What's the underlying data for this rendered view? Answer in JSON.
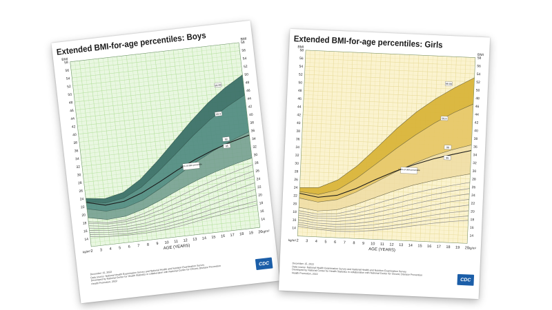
{
  "chart_data": [
    {
      "type": "area",
      "title": "Extended BMI-for-age percentiles: Boys",
      "xlabel": "AGE (YEARS)",
      "ylabel": "BMI",
      "unit_label": "kg/m²",
      "xlim": [
        2,
        20
      ],
      "ylim": [
        12,
        58
      ],
      "x_ticks": [
        2,
        3,
        4,
        5,
        6,
        7,
        8,
        9,
        10,
        11,
        12,
        13,
        14,
        15,
        16,
        17,
        18,
        19,
        20
      ],
      "y_ticks": [
        14,
        16,
        18,
        20,
        22,
        24,
        26,
        28,
        30,
        32,
        34,
        36,
        38,
        40,
        42,
        44,
        46,
        48,
        50,
        52,
        54,
        56,
        58
      ],
      "grid": true,
      "x": [
        2,
        4,
        6,
        8,
        10,
        12,
        14,
        16,
        18,
        20
      ],
      "series": [
        {
          "name": "99.99",
          "values": [
            24.0,
            23.4,
            24.4,
            27.2,
            31.2,
            35.6,
            40.0,
            44.0,
            47.3,
            50.0
          ]
        },
        {
          "name": "99.9",
          "values": [
            23.2,
            22.3,
            23.0,
            25.2,
            28.6,
            32.4,
            36.3,
            39.8,
            42.6,
            45.0
          ]
        },
        {
          "name": "99",
          "values": [
            21.4,
            20.3,
            20.6,
            22.0,
            24.4,
            27.1,
            29.8,
            32.1,
            34.1,
            35.8
          ]
        },
        {
          "name": "120% of 95th percentile",
          "values": [
            23.0,
            21.8,
            22.2,
            23.8,
            26.0,
            28.4,
            30.5,
            32.3,
            33.8,
            35.0
          ]
        },
        {
          "name": "95",
          "values": [
            19.2,
            18.2,
            18.5,
            19.8,
            21.6,
            23.6,
            25.4,
            26.9,
            28.2,
            29.3
          ]
        },
        {
          "name": "",
          "values": [
            18.2,
            17.4,
            17.6,
            18.7,
            20.3,
            22.0,
            23.7,
            25.1,
            26.4,
            27.6
          ]
        },
        {
          "name": "",
          "values": [
            17.8,
            17.1,
            17.2,
            18.0,
            19.2,
            20.7,
            22.2,
            23.6,
            24.9,
            26.0
          ]
        },
        {
          "name": "",
          "values": [
            17.2,
            16.5,
            16.6,
            17.2,
            18.3,
            19.6,
            21.0,
            22.3,
            23.6,
            24.8
          ]
        },
        {
          "name": "",
          "values": [
            16.6,
            16.0,
            15.9,
            16.3,
            17.2,
            18.3,
            19.6,
            20.8,
            22.0,
            23.1
          ]
        },
        {
          "name": "",
          "values": [
            16.0,
            15.5,
            15.3,
            15.6,
            16.3,
            17.2,
            18.3,
            19.4,
            20.5,
            21.5
          ]
        },
        {
          "name": "",
          "values": [
            15.5,
            15.0,
            14.8,
            14.9,
            15.4,
            16.2,
            17.2,
            18.2,
            19.2,
            20.1
          ]
        },
        {
          "name": "",
          "values": [
            15.0,
            14.5,
            14.2,
            14.3,
            14.7,
            15.4,
            16.2,
            17.1,
            17.9,
            18.6
          ]
        },
        {
          "name": "",
          "values": [
            14.5,
            14.0,
            13.8,
            13.8,
            14.1,
            14.7,
            15.5,
            16.2,
            17.0,
            17.6
          ]
        }
      ],
      "left_label_pos": "BMI",
      "right_label_top": "BMI",
      "footnote": [
        "December 15, 2022",
        "Data source: National Health Examination Survey and National Health and Nutrition Examination Survey",
        "Developed by National Center for Health Statistics in collaboration with National Center for Chronic Disease Prevention and",
        "Health Promotion, 2022"
      ],
      "logo_text": "CDC",
      "colors": {
        "band_top": "#3c7168",
        "band_mid": "#4f8a80",
        "band_low": "#6f9a8c",
        "grid": "#b7e2a0",
        "bg": "#e9f7e1",
        "line": "#1f3f38"
      }
    },
    {
      "type": "area",
      "title": "Extended BMI-for-age percentiles: Girls",
      "xlabel": "AGE (YEARS)",
      "ylabel": "BMI",
      "unit_label": "kg/m²",
      "xlim": [
        2,
        20
      ],
      "ylim": [
        12,
        58
      ],
      "x_ticks": [
        2,
        3,
        4,
        5,
        6,
        7,
        8,
        9,
        10,
        11,
        12,
        13,
        14,
        15,
        16,
        17,
        18,
        19,
        20
      ],
      "y_ticks": [
        14,
        16,
        18,
        20,
        22,
        24,
        26,
        28,
        30,
        32,
        34,
        36,
        38,
        40,
        42,
        44,
        46,
        48,
        50,
        52,
        54,
        56,
        58
      ],
      "grid": true,
      "x": [
        2,
        4,
        6,
        8,
        10,
        12,
        14,
        16,
        18,
        20
      ],
      "series": [
        {
          "name": "99.99",
          "values": [
            24.0,
            24.2,
            26.3,
            30.0,
            34.7,
            39.6,
            43.9,
            47.4,
            50.4,
            53.0
          ]
        },
        {
          "name": "99.9",
          "values": [
            23.0,
            22.5,
            23.8,
            26.9,
            30.7,
            34.6,
            38.2,
            41.4,
            44.2,
            46.5
          ]
        },
        {
          "name": "99",
          "values": [
            21.4,
            20.6,
            21.4,
            23.5,
            26.1,
            28.8,
            31.2,
            33.3,
            35.0,
            36.4
          ]
        },
        {
          "name": "120% of 95th percentile",
          "values": [
            22.6,
            21.8,
            22.5,
            24.4,
            26.8,
            29.0,
            30.9,
            32.5,
            33.8,
            35.0
          ]
        },
        {
          "name": "95",
          "values": [
            19.1,
            18.4,
            18.9,
            20.4,
            22.3,
            24.2,
            25.8,
            27.1,
            28.2,
            29.2
          ]
        },
        {
          "name": "",
          "values": [
            18.3,
            17.6,
            17.9,
            19.1,
            20.7,
            22.3,
            23.8,
            25.0,
            26.1,
            27.1
          ]
        },
        {
          "name": "",
          "values": [
            17.7,
            17.1,
            17.3,
            18.2,
            19.5,
            20.9,
            22.3,
            23.6,
            24.7,
            25.6
          ]
        },
        {
          "name": "",
          "values": [
            17.2,
            16.6,
            16.7,
            17.4,
            18.5,
            19.8,
            21.1,
            22.3,
            23.4,
            24.3
          ]
        },
        {
          "name": "",
          "values": [
            16.6,
            16.0,
            16.0,
            16.6,
            17.5,
            18.6,
            19.8,
            21.0,
            22.1,
            22.9
          ]
        },
        {
          "name": "",
          "values": [
            16.0,
            15.4,
            15.3,
            15.7,
            16.5,
            17.5,
            18.6,
            19.7,
            20.7,
            21.5
          ]
        },
        {
          "name": "",
          "values": [
            15.4,
            14.9,
            14.7,
            15.0,
            15.6,
            16.5,
            17.5,
            18.5,
            19.4,
            20.1
          ]
        },
        {
          "name": "",
          "values": [
            14.9,
            14.3,
            14.1,
            14.3,
            14.8,
            15.6,
            16.5,
            17.4,
            18.2,
            18.8
          ]
        },
        {
          "name": "",
          "values": [
            14.4,
            13.9,
            13.6,
            13.7,
            14.2,
            14.9,
            15.7,
            16.5,
            17.2,
            17.7
          ]
        }
      ],
      "left_label_pos": "BMI",
      "right_label_top": "BMI",
      "footnote": [
        "December 15, 2022",
        "Data source: National Health Examination Survey and National Health and Nutrition Examination Survey",
        "Developed by National Center for Health Statistics in collaboration with National Center for Chronic Disease Prevention and",
        "Health Promotion, 2022"
      ],
      "logo_text": "CDC",
      "colors": {
        "band_top": "#d9b43a",
        "band_mid": "#e6c766",
        "band_low": "#efdca3",
        "grid": "#e8dc9a",
        "bg": "#fbf3cf",
        "line": "#3a3a26"
      }
    }
  ]
}
